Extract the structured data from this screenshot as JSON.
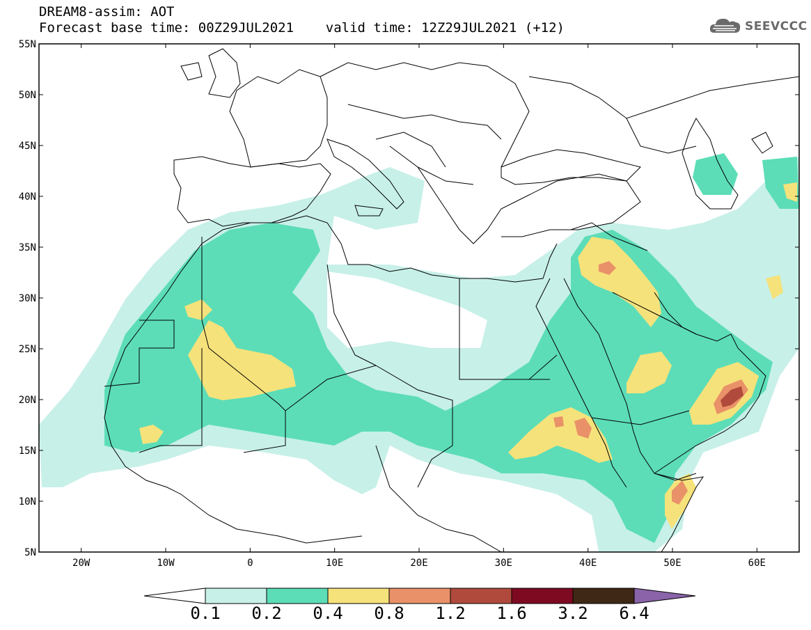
{
  "header": {
    "line1": "DREAM8-assim: AOT",
    "line2": "Forecast base time: 00Z29JUL2021    valid time: 12Z29JUL2021 (+12)"
  },
  "logo": {
    "text": "SEEVCCC",
    "icon": "cloud-icon"
  },
  "map": {
    "lon_range": [
      -25,
      65
    ],
    "lat_range": [
      5,
      55
    ],
    "y_ticks": [
      "55N",
      "50N",
      "45N",
      "40N",
      "35N",
      "30N",
      "25N",
      "20N",
      "15N",
      "10N",
      "5N"
    ],
    "x_ticks": [
      "20W",
      "10W",
      "0",
      "10E",
      "20E",
      "30E",
      "40E",
      "50E",
      "60E"
    ],
    "coastline_color": "#000000"
  },
  "colorbar": {
    "labels": [
      "0.1",
      "0.2",
      "0.4",
      "0.8",
      "1.2",
      "1.6",
      "3.2",
      "6.4"
    ],
    "colors": [
      "#ffffff",
      "#c7f0e8",
      "#5cddb8",
      "#f6e27b",
      "#e99168",
      "#b04a3c",
      "#7e0a22",
      "#3f2816",
      "#8a63a8"
    ]
  }
}
